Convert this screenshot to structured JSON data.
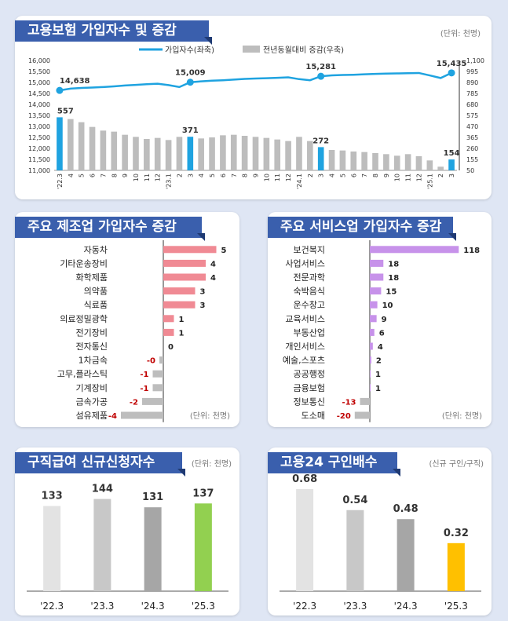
{
  "colors": {
    "accent_blue": "#1fa3e0",
    "bar_gray": "#bdbdbd",
    "title_bg": "#3a5fad",
    "pink": "#f08a94",
    "violet": "#c792ea",
    "negative": "#c00000",
    "green": "#92d050",
    "yellow": "#ffc000"
  },
  "panel1": {
    "title": "고용보험 가입자수 및 증감",
    "unit": "(단위: 천명)",
    "legend_line": "가입자수(좌축)",
    "legend_bar": "전년동월대비 증감(우축)",
    "chart_data": {
      "type": "bar+line",
      "categories": [
        "'22.3",
        "4",
        "5",
        "6",
        "7",
        "8",
        "9",
        "10",
        "11",
        "12",
        "'23.1",
        "2",
        "3",
        "4",
        "5",
        "6",
        "7",
        "8",
        "9",
        "10",
        "11",
        "12",
        "'24.1",
        "2",
        "3",
        "4",
        "5",
        "6",
        "7",
        "8",
        "9",
        "10",
        "11",
        "12",
        "'25.1",
        "2",
        "3"
      ],
      "series": [
        {
          "name": "가입자수(좌축)",
          "type": "line",
          "values": [
            14638,
            14720,
            14750,
            14770,
            14790,
            14820,
            14860,
            14890,
            14920,
            14940,
            14880,
            14790,
            15009,
            15050,
            15080,
            15100,
            15130,
            15160,
            15180,
            15190,
            15210,
            15230,
            15150,
            15100,
            15281,
            15320,
            15340,
            15350,
            15370,
            15390,
            15400,
            15410,
            15420,
            15430,
            15320,
            15200,
            15435
          ]
        },
        {
          "name": "전년동월대비 증감(우축)",
          "type": "bar",
          "values": [
            557,
            540,
            510,
            465,
            430,
            420,
            390,
            370,
            350,
            360,
            340,
            370,
            371,
            355,
            365,
            385,
            390,
            380,
            370,
            360,
            345,
            330,
            370,
            330,
            272,
            245,
            240,
            230,
            225,
            215,
            205,
            190,
            205,
            185,
            145,
            85,
            154
          ]
        }
      ],
      "labels": {
        "'22.3 line": "14,638",
        "'23.3 line": "15,009",
        "'24.3 line": "15,281",
        "'25.3 line": "15,435",
        "'22.3 bar": "557",
        "'23.3 bar": "371",
        "'24.3 bar": "272",
        "'25.3 bar": "154"
      },
      "highlight_indices": [
        0,
        12,
        24,
        36
      ],
      "ylim_left": [
        11000,
        16000
      ],
      "yticks_left": [
        "11,000",
        "11,500",
        "12,000",
        "12,500",
        "13,000",
        "13,500",
        "14,000",
        "14,500",
        "15,000",
        "15,500",
        "16,000"
      ],
      "ylim_right": [
        50,
        1100
      ],
      "yticks_right": [
        "50",
        "155",
        "260",
        "365",
        "470",
        "575",
        "680",
        "785",
        "890",
        "995",
        "1,100"
      ]
    }
  },
  "panel2": {
    "title": "주요 제조업 가입자수 증감",
    "unit": "(단위: 천명)",
    "chart_data": {
      "type": "bar",
      "orientation": "horizontal",
      "categories": [
        "자동차",
        "기타운송장비",
        "화학제품",
        "의약품",
        "식료품",
        "의료정밀광학",
        "전기장비",
        "전자통신",
        "1차금속",
        "고무,플라스틱",
        "기계장비",
        "금속가공",
        "섬유제품"
      ],
      "values": [
        5,
        4,
        4,
        3,
        3,
        1,
        1,
        0,
        0,
        -1,
        -1,
        -2,
        -4
      ],
      "value_labels": [
        "5",
        "4",
        "4",
        "3",
        "3",
        "1",
        "1",
        "0",
        "-0",
        "-1",
        "-1",
        "-2",
        "-4"
      ]
    }
  },
  "panel3": {
    "title": "주요 서비스업 가입자수 증감",
    "unit": "(단위: 천명)",
    "chart_data": {
      "type": "bar",
      "orientation": "horizontal",
      "categories": [
        "보건복지",
        "사업서비스",
        "전문과학",
        "숙박음식",
        "운수창고",
        "교육서비스",
        "부동산업",
        "개인서비스",
        "예술,스포츠",
        "공공행정",
        "금융보험",
        "정보통신",
        "도소매"
      ],
      "values": [
        118,
        18,
        18,
        15,
        10,
        9,
        6,
        4,
        2,
        1,
        1,
        -13,
        -20
      ],
      "value_labels": [
        "118",
        "18",
        "18",
        "15",
        "10",
        "9",
        "6",
        "4",
        "2",
        "1",
        "1",
        "-13",
        "-20"
      ]
    }
  },
  "panel4": {
    "title": "구직급여 신규신청자수",
    "unit": "(단위: 천명)",
    "chart_data": {
      "type": "bar",
      "categories": [
        "'22.3",
        "'23.3",
        "'24.3",
        "'25.3"
      ],
      "values": [
        133,
        144,
        131,
        137
      ],
      "value_labels": [
        "133",
        "144",
        "131",
        "137"
      ]
    }
  },
  "panel5": {
    "title": "고용24 구인배수",
    "unit": "(신규 구인/구직)",
    "chart_data": {
      "type": "bar",
      "categories": [
        "'22.3",
        "'23.3",
        "'24.3",
        "'25.3"
      ],
      "values": [
        0.68,
        0.54,
        0.48,
        0.32
      ],
      "value_labels": [
        "0.68",
        "0.54",
        "0.48",
        "0.32"
      ]
    }
  }
}
